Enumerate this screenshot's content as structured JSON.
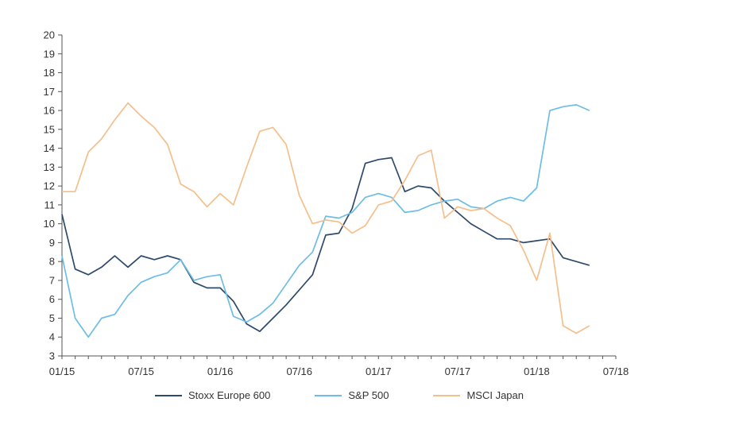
{
  "chart_data": {
    "type": "line",
    "title": "",
    "xlabel": "",
    "ylabel": "",
    "ylim": [
      3,
      20
    ],
    "yticks": [
      "3",
      "4",
      "5",
      "6",
      "7",
      "8",
      "9",
      "10",
      "11",
      "12",
      "13",
      "14",
      "15",
      "16",
      "17",
      "18",
      "19",
      "20"
    ],
    "xlim": [
      "2015-01",
      "2018-07"
    ],
    "xticks": [
      {
        "date": "2015-01",
        "label": "01/15"
      },
      {
        "date": "2015-07",
        "label": "07/15"
      },
      {
        "date": "2016-01",
        "label": "01/16"
      },
      {
        "date": "2016-07",
        "label": "07/16"
      },
      {
        "date": "2017-01",
        "label": "01/17"
      },
      {
        "date": "2017-07",
        "label": "07/17"
      },
      {
        "date": "2018-01",
        "label": "01/18"
      },
      {
        "date": "2018-07",
        "label": "07/18"
      }
    ],
    "grid": false,
    "legend_position": "bottom",
    "x": [
      "2015-01",
      "2015-02",
      "2015-03",
      "2015-04",
      "2015-05",
      "2015-06",
      "2015-07",
      "2015-08",
      "2015-09",
      "2015-10",
      "2015-11",
      "2015-12",
      "2016-01",
      "2016-02",
      "2016-03",
      "2016-04",
      "2016-05",
      "2016-06",
      "2016-07",
      "2016-08",
      "2016-09",
      "2016-10",
      "2016-11",
      "2016-12",
      "2017-01",
      "2017-02",
      "2017-03",
      "2017-04",
      "2017-05",
      "2017-06",
      "2017-07",
      "2017-08",
      "2017-09",
      "2017-10",
      "2017-11",
      "2017-12",
      "2018-01",
      "2018-02",
      "2018-03",
      "2018-04",
      "2018-05"
    ],
    "series": [
      {
        "name": "Stoxx Europe 600",
        "color": "#2e4a6b",
        "values": [
          10.5,
          7.6,
          7.3,
          7.7,
          8.3,
          7.7,
          8.3,
          8.1,
          8.3,
          8.1,
          6.9,
          6.6,
          6.6,
          5.9,
          4.7,
          4.3,
          5.0,
          5.7,
          6.5,
          7.3,
          9.4,
          9.5,
          10.8,
          13.2,
          13.4,
          13.5,
          11.7,
          12.0,
          11.9,
          11.2,
          10.6,
          10.0,
          9.6,
          9.2,
          9.2,
          9.0,
          9.1,
          9.2,
          8.2,
          8.0,
          7.8
        ]
      },
      {
        "name": "S&P 500",
        "color": "#6dbde6",
        "values": [
          8.3,
          5.0,
          4.0,
          5.0,
          5.2,
          6.2,
          6.9,
          7.2,
          7.4,
          8.1,
          7.0,
          7.2,
          7.3,
          5.1,
          4.8,
          5.2,
          5.8,
          6.8,
          7.8,
          8.5,
          10.4,
          10.3,
          10.6,
          11.4,
          11.6,
          11.4,
          10.6,
          10.7,
          11.0,
          11.2,
          11.3,
          10.9,
          10.8,
          11.2,
          11.4,
          11.2,
          11.9,
          16.0,
          16.2,
          16.3,
          16.0
        ]
      },
      {
        "name": "MSCI Japan",
        "color": "#f5bf8c",
        "values": [
          11.7,
          11.7,
          13.8,
          14.5,
          15.5,
          16.4,
          15.7,
          15.1,
          14.2,
          12.1,
          11.7,
          10.9,
          11.6,
          11.0,
          13.0,
          14.9,
          15.1,
          14.2,
          11.5,
          10.0,
          10.2,
          10.1,
          9.5,
          9.9,
          11.0,
          11.2,
          12.3,
          13.6,
          13.9,
          10.3,
          10.9,
          10.7,
          10.8,
          10.3,
          9.9,
          8.6,
          7.0,
          9.5,
          4.6,
          4.2,
          4.6
        ]
      }
    ]
  }
}
